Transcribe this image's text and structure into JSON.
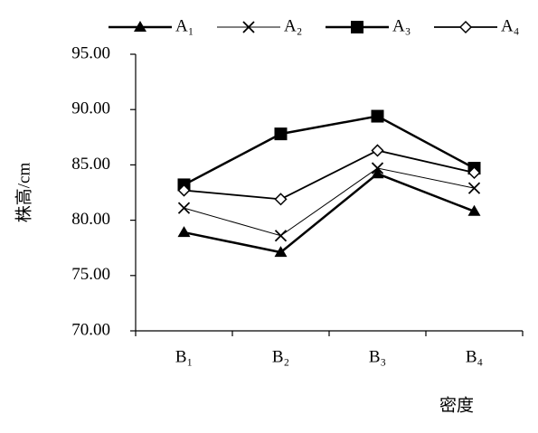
{
  "chart_data": {
    "type": "line",
    "y_label": "株高/cm",
    "x_label": "密度",
    "categories": [
      "B₁",
      "B₂",
      "B₃",
      "B₄"
    ],
    "series": [
      {
        "name": "A₁",
        "color": "#000000",
        "marker": "triangle",
        "values": [
          78.9,
          77.1,
          84.2,
          80.8
        ]
      },
      {
        "name": "A₂",
        "color": "#000000",
        "marker": "x",
        "values": [
          81.1,
          78.6,
          84.7,
          82.9
        ]
      },
      {
        "name": "A₃",
        "color": "#000000",
        "marker": "square",
        "values": [
          83.2,
          87.8,
          89.4,
          84.7
        ]
      },
      {
        "name": "A₄",
        "color": "#000000",
        "marker": "diamond",
        "values": [
          82.7,
          81.9,
          86.3,
          84.3
        ]
      }
    ],
    "ylim": [
      70,
      95
    ],
    "yticks": [
      {
        "value": 70,
        "label": "70.00"
      },
      {
        "value": 75,
        "label": "75.00"
      },
      {
        "value": 80,
        "label": "80.00"
      },
      {
        "value": 85,
        "label": "85.00"
      },
      {
        "value": 90,
        "label": "90.00"
      },
      {
        "value": 95,
        "label": "95.00"
      }
    ],
    "legend": "top",
    "grid": false
  }
}
